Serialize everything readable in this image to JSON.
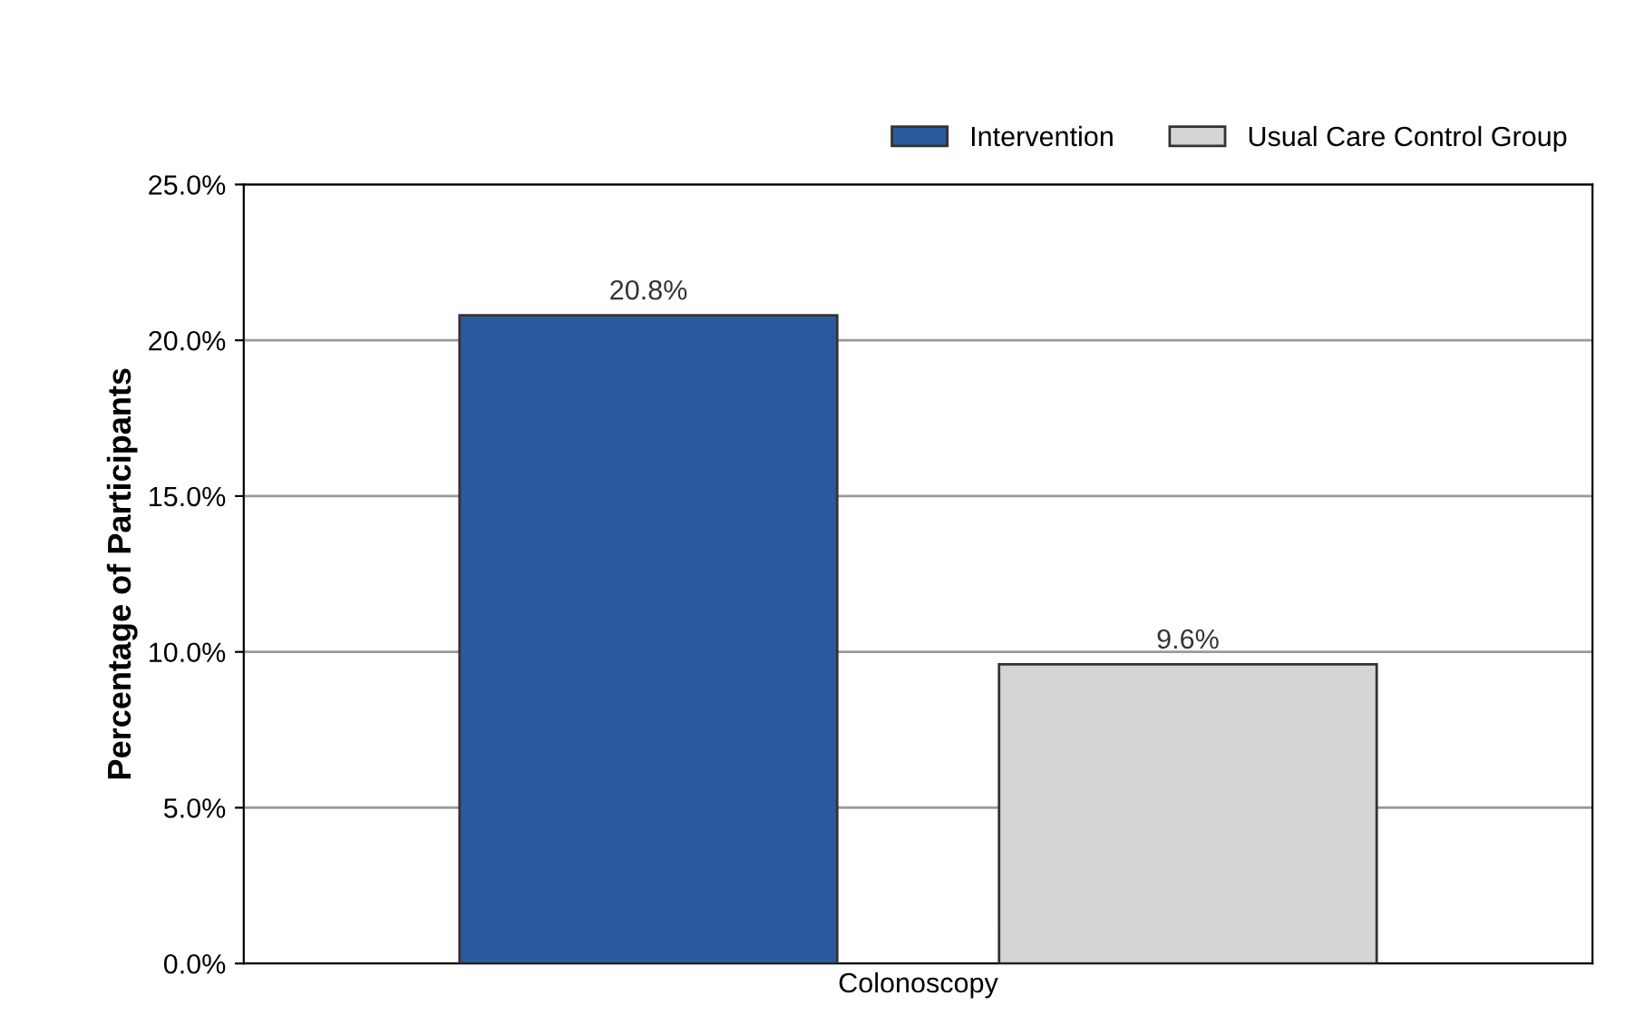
{
  "chart_data": {
    "type": "bar",
    "ylabel": "Percentage of Participants",
    "categories": [
      "Colonoscopy"
    ],
    "series": [
      {
        "name": "Intervention",
        "color": "#2a5a9e",
        "values": [
          20.8
        ],
        "value_labels": [
          "20.8%"
        ]
      },
      {
        "name": "Usual Care Control Group",
        "color": "#d4d6d6",
        "values": [
          9.6
        ],
        "value_labels": [
          "9.6%"
        ]
      }
    ],
    "ylim": [
      0,
      25
    ],
    "yticks": [
      {
        "value": 0,
        "label": "0.0%"
      },
      {
        "value": 5,
        "label": "5.0%"
      },
      {
        "value": 10,
        "label": "10.0%"
      },
      {
        "value": 15,
        "label": "15.0%"
      },
      {
        "value": 20,
        "label": "20.0%"
      },
      {
        "value": 25,
        "label": "25.0%"
      }
    ],
    "grid": "y",
    "legend": "top right"
  }
}
